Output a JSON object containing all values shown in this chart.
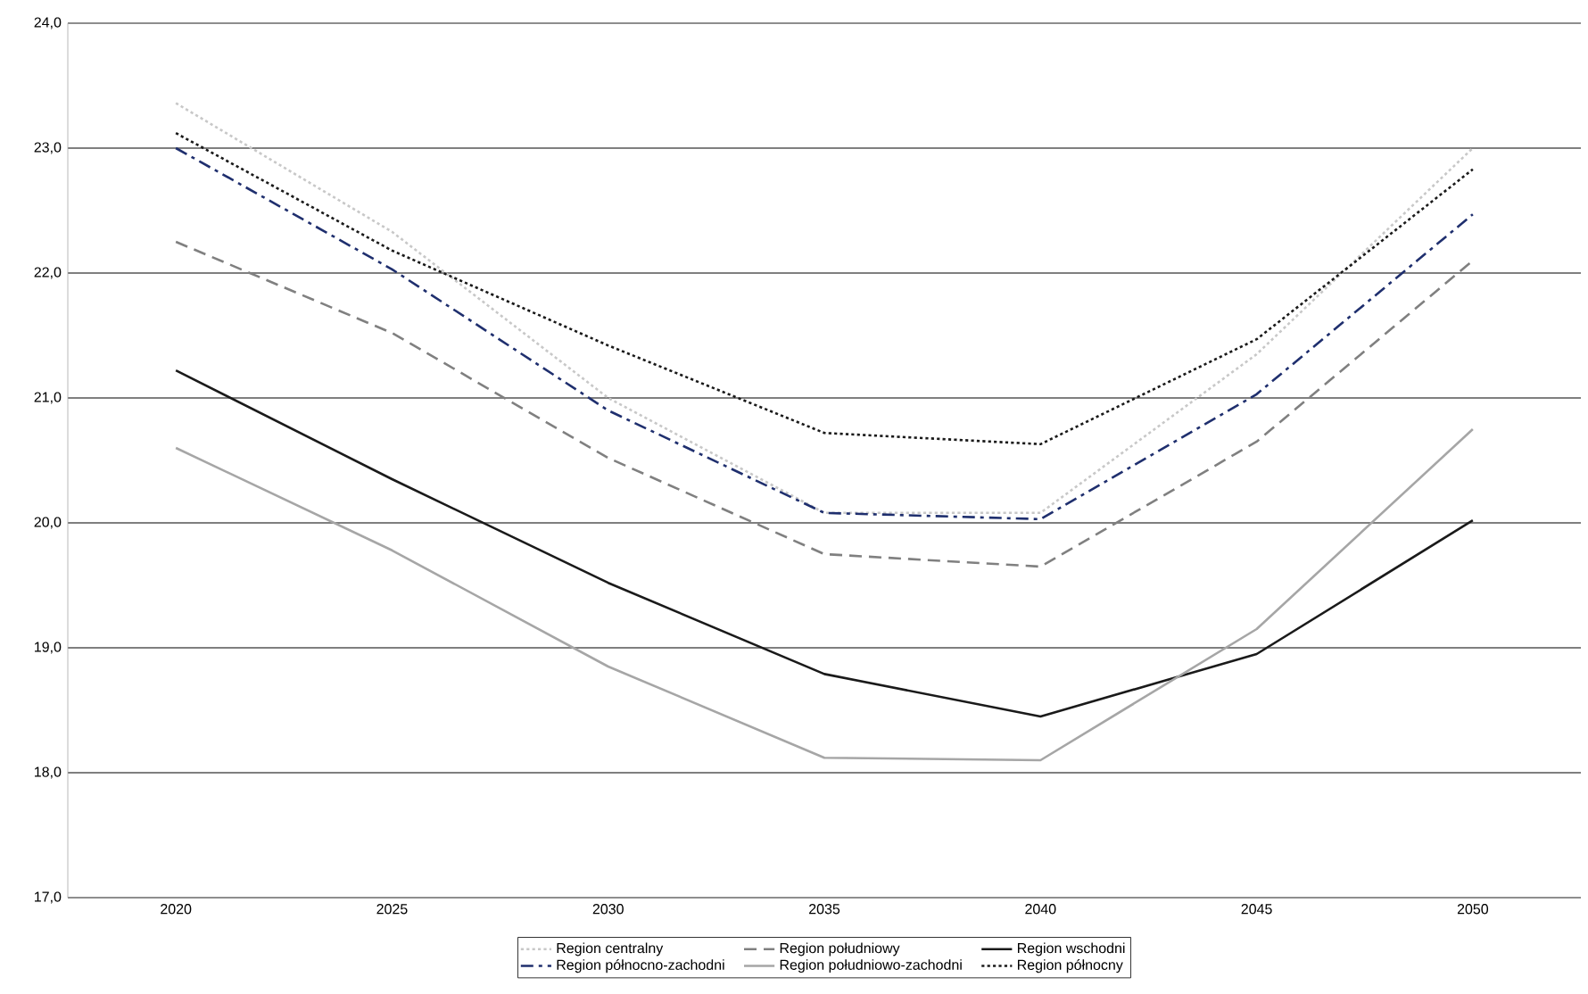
{
  "chart_data": {
    "type": "line",
    "categories": [
      "2020",
      "2025",
      "2030",
      "2035",
      "2040",
      "2045",
      "2050"
    ],
    "series": [
      {
        "name": "Region centralny",
        "color": "#c8c8c8",
        "line_style": "dotted",
        "values": [
          23.36,
          22.33,
          21.0,
          20.08,
          20.08,
          21.35,
          23.0
        ]
      },
      {
        "name": "Region południowy",
        "color": "#808080",
        "line_style": "dashed",
        "values": [
          22.25,
          21.52,
          20.52,
          19.75,
          19.65,
          20.65,
          22.1
        ]
      },
      {
        "name": "Region wschodni",
        "color": "#1a1a1a",
        "line_style": "solid",
        "values": [
          21.22,
          20.35,
          19.52,
          18.79,
          18.45,
          18.95,
          20.02
        ]
      },
      {
        "name": "Region północno-zachodni",
        "color": "#1f2f6e",
        "line_style": "dashdot",
        "values": [
          23.0,
          22.03,
          20.9,
          20.08,
          20.03,
          21.03,
          22.47
        ]
      },
      {
        "name": "Region południowo-zachodni",
        "color": "#a6a6a6",
        "line_style": "solid",
        "values": [
          20.6,
          19.78,
          18.85,
          18.12,
          18.1,
          19.15,
          20.75
        ]
      },
      {
        "name": "Region północny",
        "color": "#1a1a1a",
        "line_style": "dotted",
        "values": [
          23.12,
          22.18,
          21.42,
          20.72,
          20.63,
          21.47,
          22.83
        ]
      }
    ],
    "ylim": [
      17,
      24
    ],
    "yticks": [
      {
        "value": 17,
        "label": "17,0"
      },
      {
        "value": 18,
        "label": "18,0"
      },
      {
        "value": 19,
        "label": "19,0"
      },
      {
        "value": 20,
        "label": "20,0"
      },
      {
        "value": 21,
        "label": "21,0"
      },
      {
        "value": 22,
        "label": "22,0"
      },
      {
        "value": 23,
        "label": "23,0"
      },
      {
        "value": 24,
        "label": "24,0"
      }
    ],
    "grid": "y",
    "legend": "bottom",
    "marker": "none"
  }
}
